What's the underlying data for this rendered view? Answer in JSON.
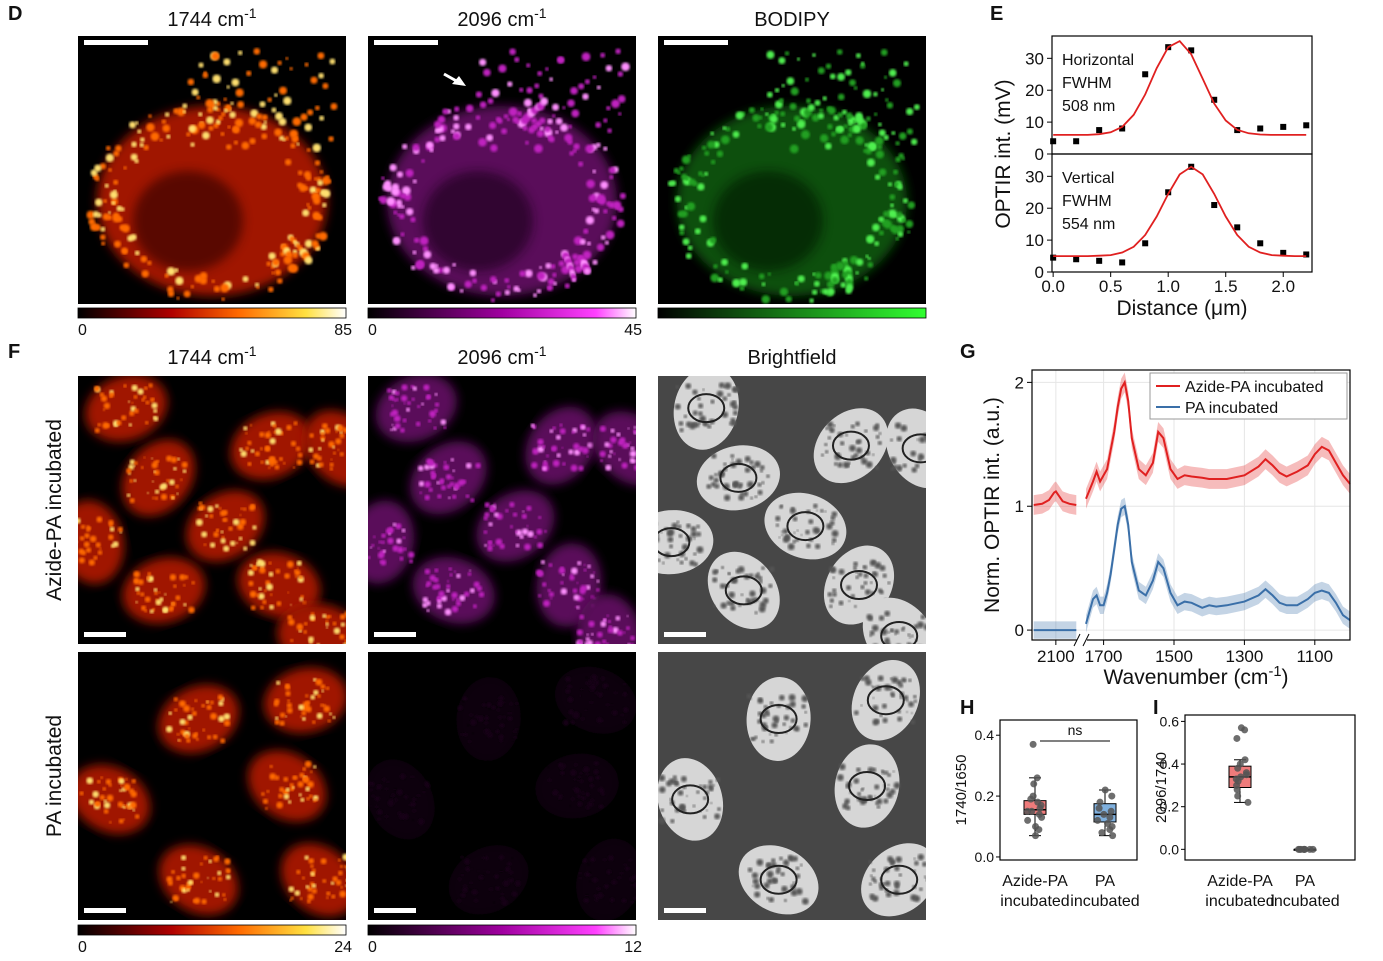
{
  "panel_labels": [
    "D",
    "E",
    "F",
    "G",
    "H",
    "I"
  ],
  "image_titles": [
    {
      "text": "1744 cm",
      "sup": "-1"
    },
    {
      "text": "2096 cm",
      "sup": "-1"
    },
    {
      "text": "BODIPY"
    },
    {
      "text": "1744 cm",
      "sup": "-1"
    },
    {
      "text": "2096 cm",
      "sup": "-1"
    },
    {
      "text": "Brightfield"
    }
  ],
  "row_labels": [
    "Azide-PA incubated",
    "PA incubated"
  ],
  "colorbars": [
    {
      "min": 0,
      "max": 85
    },
    {
      "min": 0,
      "max": 45
    },
    {
      "min": 0,
      "max": 24
    },
    {
      "min": 0,
      "max": 12
    }
  ],
  "chart_data": [
    {
      "type": "line",
      "ylabel": "OPTIR int. (mV)",
      "annotations": [
        "Horizontal",
        "FWHM",
        "508 nm"
      ],
      "xlim": [
        -0.01,
        2.25
      ],
      "ylim": [
        0,
        37
      ],
      "yticks": [
        0,
        10,
        20,
        30
      ],
      "series": [
        {
          "mode": "markers",
          "color": "#000000",
          "x": [
            0,
            0.2,
            0.4,
            0.6,
            0.8,
            1.0,
            1.2,
            1.4,
            1.6,
            1.8,
            2.0,
            2.2
          ],
          "values": [
            4,
            4,
            7.5,
            8,
            25,
            33.5,
            32.5,
            17,
            7.5,
            8,
            8.5,
            9
          ]
        },
        {
          "mode": "line",
          "color": "#e02020",
          "x": [
            0,
            0.1,
            0.2,
            0.3,
            0.4,
            0.5,
            0.6,
            0.7,
            0.8,
            0.9,
            1.0,
            1.1,
            1.2,
            1.3,
            1.4,
            1.5,
            1.6,
            1.7,
            1.8,
            1.9,
            2.0,
            2.1,
            2.2
          ],
          "values": [
            6,
            6,
            6,
            6,
            6.2,
            6.8,
            8.5,
            12.3,
            18.7,
            26.9,
            33.5,
            35.4,
            31.3,
            23.6,
            15.8,
            10.5,
            7.6,
            6.5,
            6.1,
            6,
            6,
            6,
            6
          ]
        }
      ]
    },
    {
      "type": "line",
      "xlabel": "Distance (μm)",
      "annotations": [
        "Vertical",
        "FWHM",
        "554 nm"
      ],
      "xlim": [
        -0.01,
        2.25
      ],
      "ylim": [
        0,
        37
      ],
      "yticks": [
        0,
        10,
        20,
        30
      ],
      "xticks": [
        {
          "value": 0,
          "label": "0.0"
        },
        {
          "value": 0.5,
          "label": "0.5"
        },
        {
          "value": 1,
          "label": "1.0"
        },
        {
          "value": 1.5,
          "label": "1.5"
        },
        {
          "value": 2,
          "label": "2.0"
        }
      ],
      "series": [
        {
          "mode": "markers",
          "color": "#000000",
          "x": [
            0,
            0.2,
            0.4,
            0.6,
            0.8,
            1.0,
            1.2,
            1.4,
            1.6,
            1.8,
            2.0,
            2.2
          ],
          "values": [
            4.5,
            4,
            3.5,
            3,
            9,
            25,
            33,
            21,
            14,
            9,
            6,
            5.5
          ]
        },
        {
          "mode": "line",
          "color": "#e02020",
          "x": [
            0,
            0.1,
            0.2,
            0.3,
            0.4,
            0.5,
            0.6,
            0.7,
            0.8,
            0.9,
            1.0,
            1.1,
            1.2,
            1.3,
            1.4,
            1.5,
            1.6,
            1.7,
            1.8,
            1.9,
            2.0,
            2.1,
            2.2
          ],
          "values": [
            5,
            5,
            5,
            5,
            5.1,
            5.3,
            6.1,
            7.9,
            11.6,
            17.4,
            24.5,
            30.6,
            33,
            30.6,
            24.5,
            17.4,
            11.6,
            7.9,
            6.1,
            5.3,
            5.1,
            5,
            5
          ]
        }
      ]
    },
    {
      "type": "line",
      "ylabel": "Norm. OPTIR int. (a.u.)",
      "xlabel": {
        "text": "Wavenumber (cm",
        "sup": "-1",
        "tail": ")"
      },
      "xsegments": [
        [
          2170,
          2035
        ],
        [
          1750,
          1000
        ]
      ],
      "ylim": [
        -0.08,
        2.1
      ],
      "yticks": [
        0,
        1,
        2
      ],
      "xticks": [
        2100,
        1700,
        1500,
        1300,
        1100
      ],
      "grid": true,
      "legend": "top-right",
      "x": [
        2165,
        2140,
        2120,
        2105,
        2100,
        2095,
        2080,
        2060,
        2040,
        1900,
        1750,
        1730,
        1720,
        1710,
        1700,
        1690,
        1680,
        1670,
        1660,
        1650,
        1640,
        1630,
        1620,
        1600,
        1580,
        1560,
        1545,
        1530,
        1510,
        1490,
        1470,
        1450,
        1420,
        1400,
        1380,
        1350,
        1300,
        1260,
        1240,
        1220,
        1200,
        1180,
        1150,
        1120,
        1100,
        1080,
        1060,
        1040,
        1020,
        1000
      ],
      "series": [
        {
          "name": "Azide-PA incubated",
          "color": "#e02020",
          "error": 0.08,
          "values": [
            1.01,
            1.02,
            1.05,
            1.11,
            1.12,
            1.1,
            1.04,
            1.02,
            1.01,
            null,
            1.06,
            1.2,
            1.28,
            1.2,
            1.25,
            1.3,
            1.45,
            1.6,
            1.8,
            1.95,
            2.0,
            1.85,
            1.55,
            1.3,
            1.25,
            1.35,
            1.6,
            1.55,
            1.3,
            1.22,
            1.25,
            1.24,
            1.23,
            1.22,
            1.22,
            1.22,
            1.25,
            1.32,
            1.38,
            1.33,
            1.27,
            1.24,
            1.28,
            1.33,
            1.42,
            1.48,
            1.45,
            1.35,
            1.25,
            1.18
          ]
        },
        {
          "name": "PA incubated",
          "color": "#3a6fa8",
          "error": 0.07,
          "values": [
            0,
            0,
            0,
            0,
            0,
            0,
            0,
            0,
            0,
            null,
            0.05,
            0.25,
            0.28,
            0.2,
            0.2,
            0.3,
            0.45,
            0.65,
            0.85,
            0.98,
            1.0,
            0.85,
            0.55,
            0.32,
            0.28,
            0.4,
            0.55,
            0.5,
            0.3,
            0.2,
            0.23,
            0.22,
            0.18,
            0.2,
            0.19,
            0.2,
            0.23,
            0.28,
            0.33,
            0.28,
            0.22,
            0.2,
            0.2,
            0.25,
            0.3,
            0.32,
            0.3,
            0.22,
            0.12,
            0.08
          ]
        }
      ]
    },
    {
      "type": "box",
      "ylabel": "1740/1650",
      "annotation": "ns",
      "ylim": [
        -0.01,
        0.45
      ],
      "yticks": [
        {
          "value": 0,
          "label": "0.0"
        },
        {
          "value": 0.2,
          "label": "0.2"
        },
        {
          "value": 0.4,
          "label": "0.4"
        }
      ],
      "categories": [
        [
          "Azide-PA",
          "incubated"
        ],
        [
          "PA",
          "incubated"
        ]
      ],
      "boxes": [
        {
          "color": "#ee7b7b",
          "q1": 0.14,
          "median": 0.155,
          "q3": 0.185,
          "whisker_low": 0.07,
          "whisker_high": 0.26,
          "points": [
            0.37,
            0.26,
            0.24,
            0.2,
            0.19,
            0.18,
            0.17,
            0.16,
            0.15,
            0.15,
            0.14,
            0.13,
            0.12,
            0.1,
            0.09,
            0.07
          ]
        },
        {
          "color": "#7fb0de",
          "q1": 0.115,
          "median": 0.14,
          "q3": 0.175,
          "whisker_low": 0.07,
          "whisker_high": 0.22,
          "points": [
            0.22,
            0.2,
            0.18,
            0.16,
            0.15,
            0.14,
            0.13,
            0.12,
            0.11,
            0.1,
            0.09,
            0.08,
            0.07
          ]
        }
      ]
    },
    {
      "type": "box",
      "ylabel": "2096/1740",
      "ylim": [
        -0.05,
        0.63
      ],
      "yticks": [
        {
          "value": 0,
          "label": "0.0"
        },
        {
          "value": 0.2,
          "label": "0.2"
        },
        {
          "value": 0.4,
          "label": "0.4"
        },
        {
          "value": 0.6,
          "label": "0.6"
        }
      ],
      "categories": [
        [
          "Azide-PA",
          "incubated"
        ],
        [
          "PA",
          "incubated"
        ]
      ],
      "boxes": [
        {
          "color": "#ee7b7b",
          "q1": 0.29,
          "median": 0.34,
          "q3": 0.39,
          "whisker_low": 0.22,
          "whisker_high": 0.42,
          "points": [
            0.57,
            0.56,
            0.52,
            0.42,
            0.4,
            0.38,
            0.36,
            0.35,
            0.34,
            0.33,
            0.32,
            0.3,
            0.28,
            0.25,
            0.22
          ]
        },
        {
          "color": "#7fb0de",
          "q1": 0.0,
          "median": 0.0,
          "q3": 0.0,
          "whisker_low": 0.0,
          "whisker_high": 0.0,
          "points": [
            0,
            0,
            0,
            0,
            0,
            0,
            0,
            0
          ]
        }
      ]
    }
  ]
}
